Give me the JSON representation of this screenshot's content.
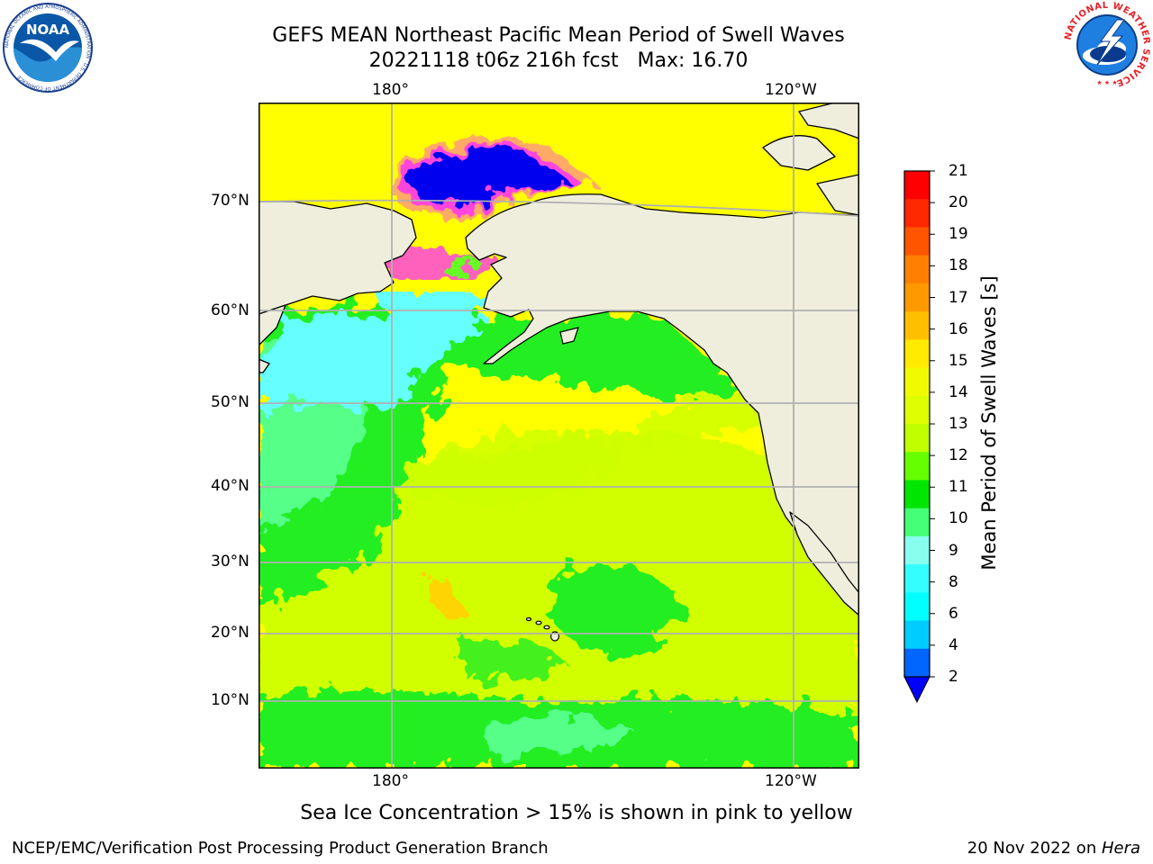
{
  "header": {
    "title_line1": "GEFS MEAN Northeast Pacific Mean Period of Swell Waves",
    "title_line2": "20221118 t06z 216h fcst   Max: 16.70"
  },
  "logos": {
    "left": {
      "name": "noaa-logo",
      "text": "NOAA",
      "ring_text": "NATIONAL OCEANIC AND ATMOSPHERIC ADMINISTRATION · U.S. DEPARTMENT OF COMMERCE"
    },
    "right": {
      "name": "nws-logo",
      "ring_text": "NATIONAL WEATHER SERVICE"
    }
  },
  "map": {
    "lon_labels_top": [
      "180°",
      "120°W"
    ],
    "lon_labels_bottom": [
      "180°",
      "120°W"
    ],
    "lat_labels": [
      "70°N",
      "60°N",
      "50°N",
      "40°N",
      "30°N",
      "20°N",
      "10°N"
    ],
    "colors": {
      "land": "#efeedd",
      "ice_core": "#0000ee",
      "ice_edge": "#ff44dd",
      "ice_orange": "#ffaa66",
      "cyan": "#66ffff",
      "light_green": "#55ff88",
      "green": "#22ee22",
      "yellow_green": "#ccff00",
      "yellow": "#ffff00",
      "gridline": "#b0b0b0"
    }
  },
  "colorbar": {
    "label": "Mean Period of Swell Waves [s]",
    "ticks": [
      "21",
      "20",
      "19",
      "18",
      "17",
      "16",
      "15",
      "14",
      "13",
      "12",
      "11",
      "10",
      "9",
      "8",
      "6",
      "4",
      "2"
    ],
    "colors_top_to_bottom": [
      "#ff0000",
      "#ff2800",
      "#ff5500",
      "#ff7f00",
      "#ff9900",
      "#ffbf00",
      "#ffea00",
      "#f2fa00",
      "#ddff00",
      "#bfff00",
      "#66ff00",
      "#00e600",
      "#44ff77",
      "#88ffee",
      "#33ffff",
      "#00ffff",
      "#00ccff",
      "#0066ff"
    ],
    "extend_color": "#0000ff"
  },
  "footer": {
    "note": "Sea Ice Concentration > 15% is shown in pink to yellow",
    "left": "NCEP/EMC/Verification Post Processing Product Generation Branch",
    "date": "20 Nov 2022 on ",
    "machine": "Hera"
  }
}
